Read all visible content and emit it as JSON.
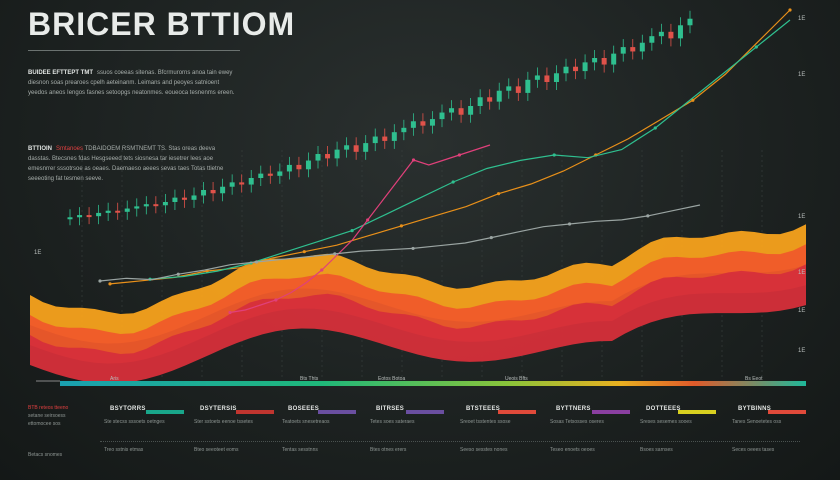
{
  "title": "BRICER BTTIOM",
  "paragraphs": [
    {
      "head": "BUIDEE EFTTEPT TMT",
      "text": "ssuos coeeas sitenas. Bfcrmurorns anoa tain ewey diesnon soas prearoes cpelh aeteinanm. Leimans and peoyes satnioent yeedos aneos Iengos fasnes setoopgs neatonmes. eoueoca tesnenms ereen.",
      "highlight": ""
    },
    {
      "head": "BTTIOIN",
      "text": "TDBAIDOEM RSMTNEMT TS. Stas oreas deeva dasstas. Btecsnes fdas Hesgseeed tets siosnesa tar iesetrer lees aoe emesnrrer sssotrsoe as oeaes. Daemaeso aeees sevas taes Totas ttietne seeeoting fat tesmen seeve.",
      "highlight": "Smtanoes"
    }
  ],
  "notes": [
    "BTB reteos tteeno",
    "setane seirsoess",
    "ettomocee sos"
  ],
  "notes2": "Betacs snomes",
  "right_labels": [
    "1E",
    "1E",
    "1E",
    "1E",
    "1E",
    "1E",
    "1E"
  ],
  "time_labels": [
    "Aris",
    "Bts Thts",
    "Eotos Botoa",
    "Ueois Bfts",
    "Bs Eeot"
  ],
  "legend": [
    {
      "name": "BSYTORRS",
      "color": "#19a68a",
      "desc": "Ste stecss sssoets oetnges",
      "desc2": "Treo sstnis etmas"
    },
    {
      "name": "DSYTERSIS",
      "color": "#c0352f",
      "desc": "Ster sstoets eenoe tssetes",
      "desc2": "Bteo seeoteet eoms"
    },
    {
      "name": "BOSEEES",
      "color": "#6a4fa0",
      "desc": "Teatoets snesetreaos",
      "desc2": "Tentas sesstnns"
    },
    {
      "name": "BITRSES",
      "color": "#6a4fa0",
      "desc": "Tetes soes sateraes",
      "desc2": "Btes otnes erers"
    },
    {
      "name": "BTSTEEES",
      "color": "#e04a3a",
      "desc": "Sreoet tsstentes ssose",
      "desc2": "Seeso sesstes nones"
    },
    {
      "name": "BYTTNERS",
      "color": "#8a3fa0",
      "desc": "Sosas Tetsosses oseres",
      "desc2": "Teseo enoets oeoes"
    },
    {
      "name": "DOTTEEES",
      "color": "#d8d020",
      "desc": "Sreses sesemes sooes",
      "desc2": "Bsoes sarnses"
    },
    {
      "name": "BYTBINNS",
      "color": "#e04a3a",
      "desc": "Tanes Senoetetes oss",
      "desc2": "Seces oeees tases"
    }
  ],
  "colors": {
    "candle_up": "#2fbf8f",
    "candle_down": "#e0524a",
    "line_orange": "#e8901a",
    "line_teal": "#2fbf8f",
    "line_pink": "#e0407a",
    "line_grey": "#9aa4a2",
    "area_dark": "#d62f3a",
    "area_mid": "#f05a2a",
    "area_light": "#f7a21c"
  },
  "chart_data": {
    "type": "line",
    "series": [
      {
        "values": [
          30,
          32,
          31,
          34,
          36,
          35,
          38,
          40,
          42,
          41,
          44,
          48,
          46,
          50,
          55,
          52,
          58,
          62,
          60,
          66,
          70,
          68,
          72,
          78,
          74,
          82,
          88,
          84,
          92,
          96,
          90,
          98,
          104,
          100,
          108,
          112,
          118,
          114,
          120,
          126,
          130,
          124,
          132,
          140,
          136,
          146,
          150,
          144,
          156,
          160,
          154,
          162,
          168,
          164,
          172,
          176,
          170,
          180,
          186,
          182,
          190,
          196,
          200,
          194,
          206,
          212
        ]
      },
      {
        "values": [
          10,
          12,
          14,
          18,
          20,
          26,
          30,
          34,
          40,
          46,
          52,
          58,
          66,
          72,
          80,
          90,
          100,
          112,
          124,
          140,
          160,
          180
        ]
      },
      {
        "values": [
          8,
          10,
          14,
          20,
          28,
          36,
          44,
          56,
          68,
          80,
          90,
          96,
          100,
          98,
          104,
          120,
          140,
          160,
          180,
          200
        ]
      },
      {
        "values": [
          6,
          8,
          12,
          16,
          22,
          30,
          40,
          52,
          64,
          80,
          96,
          112,
          128,
          124,
          128,
          132,
          136,
          140
        ]
      },
      {
        "values": [
          28,
          32,
          30,
          38,
          44,
          52,
          56,
          60,
          64,
          68,
          72,
          74,
          76,
          80,
          84,
          92,
          100,
          108,
          112,
          116,
          118,
          124,
          132,
          140
        ]
      }
    ]
  }
}
